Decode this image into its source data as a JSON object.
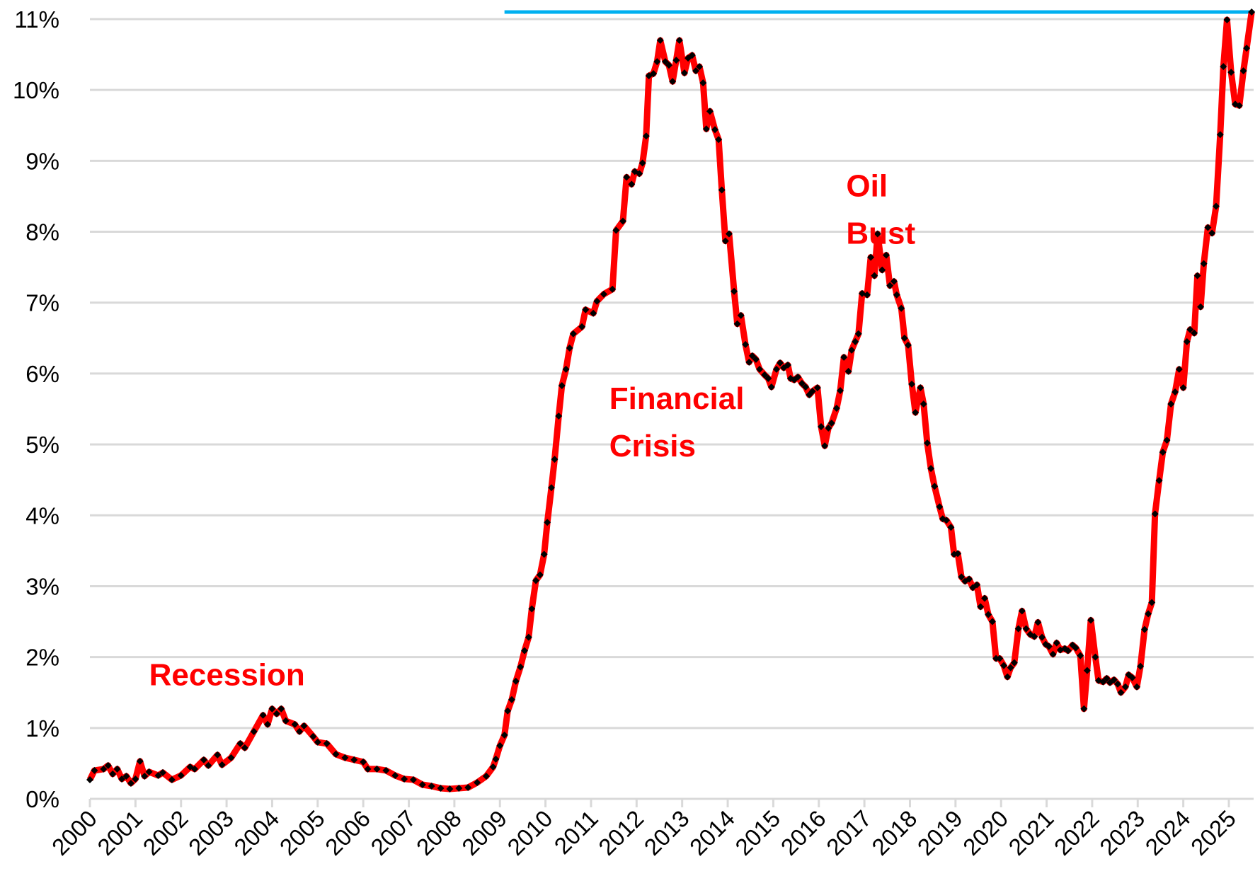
{
  "chart_data": {
    "type": "line",
    "title": "",
    "xlabel": "",
    "ylabel": "",
    "xlim": [
      2000,
      2025.55
    ],
    "ylim": [
      0,
      11
    ],
    "grid": "horizontal",
    "legend": "none",
    "x_ticks": [
      "2000",
      "2001",
      "2002",
      "2003",
      "2004",
      "2005",
      "2006",
      "2007",
      "2008",
      "2009",
      "2010",
      "2011",
      "2012",
      "2013",
      "2014",
      "2015",
      "2016",
      "2017",
      "2018",
      "2019",
      "2020",
      "2021",
      "2022",
      "2023",
      "2024",
      "2025"
    ],
    "y_ticks": [
      "0%",
      "1%",
      "2%",
      "3%",
      "4%",
      "5%",
      "6%",
      "7%",
      "8%",
      "9%",
      "10%",
      "11%"
    ],
    "colors": {
      "line": "#ff0000",
      "marker": "#000000",
      "reference_line": "#00b0f0",
      "grid": "#d9d9d9",
      "annotation": "#ff0000"
    },
    "annotations": [
      {
        "lines": [
          "Recession"
        ],
        "x": 2001.3,
        "y": 1.6
      },
      {
        "lines": [
          "Financial",
          "Crisis"
        ],
        "x": 2011.4,
        "y": 5.5
      },
      {
        "lines": [
          "Oil",
          "Bust"
        ],
        "x": 2016.6,
        "y": 8.5
      }
    ],
    "reference_line": {
      "value": 11.1,
      "x_start": 2009.1,
      "x_end": 2025.55
    },
    "series": [
      {
        "marker": "diamond",
        "points": [
          [
            2000.0,
            0.27
          ],
          [
            2000.1,
            0.4
          ],
          [
            2000.3,
            0.42
          ],
          [
            2000.4,
            0.47
          ],
          [
            2000.5,
            0.35
          ],
          [
            2000.6,
            0.42
          ],
          [
            2000.7,
            0.28
          ],
          [
            2000.8,
            0.32
          ],
          [
            2000.9,
            0.22
          ],
          [
            2001.0,
            0.28
          ],
          [
            2001.1,
            0.53
          ],
          [
            2001.2,
            0.32
          ],
          [
            2001.3,
            0.38
          ],
          [
            2001.5,
            0.33
          ],
          [
            2001.6,
            0.37
          ],
          [
            2001.8,
            0.27
          ],
          [
            2002.0,
            0.33
          ],
          [
            2002.2,
            0.45
          ],
          [
            2002.3,
            0.42
          ],
          [
            2002.5,
            0.55
          ],
          [
            2002.6,
            0.47
          ],
          [
            2002.8,
            0.62
          ],
          [
            2002.9,
            0.48
          ],
          [
            2003.1,
            0.58
          ],
          [
            2003.3,
            0.78
          ],
          [
            2003.4,
            0.72
          ],
          [
            2003.6,
            0.95
          ],
          [
            2003.8,
            1.18
          ],
          [
            2003.9,
            1.05
          ],
          [
            2004.0,
            1.27
          ],
          [
            2004.1,
            1.2
          ],
          [
            2004.2,
            1.27
          ],
          [
            2004.3,
            1.1
          ],
          [
            2004.5,
            1.05
          ],
          [
            2004.6,
            0.95
          ],
          [
            2004.7,
            1.03
          ],
          [
            2004.9,
            0.88
          ],
          [
            2005.0,
            0.8
          ],
          [
            2005.2,
            0.78
          ],
          [
            2005.4,
            0.63
          ],
          [
            2005.6,
            0.58
          ],
          [
            2005.8,
            0.55
          ],
          [
            2006.0,
            0.52
          ],
          [
            2006.1,
            0.42
          ],
          [
            2006.3,
            0.42
          ],
          [
            2006.5,
            0.4
          ],
          [
            2006.7,
            0.33
          ],
          [
            2006.9,
            0.28
          ],
          [
            2007.1,
            0.27
          ],
          [
            2007.3,
            0.2
          ],
          [
            2007.5,
            0.18
          ],
          [
            2007.7,
            0.15
          ],
          [
            2007.9,
            0.14
          ],
          [
            2008.1,
            0.15
          ],
          [
            2008.3,
            0.16
          ],
          [
            2008.5,
            0.23
          ],
          [
            2008.7,
            0.32
          ],
          [
            2008.85,
            0.45
          ],
          [
            2008.91,
            0.56
          ],
          [
            2009.0,
            0.75
          ],
          [
            2009.1,
            0.9
          ],
          [
            2009.17,
            1.24
          ],
          [
            2009.26,
            1.4
          ],
          [
            2009.35,
            1.66
          ],
          [
            2009.45,
            1.86
          ],
          [
            2009.54,
            2.09
          ],
          [
            2009.63,
            2.28
          ],
          [
            2009.7,
            2.68
          ],
          [
            2009.79,
            3.08
          ],
          [
            2009.88,
            3.16
          ],
          [
            2009.97,
            3.45
          ],
          [
            2010.04,
            3.9
          ],
          [
            2010.13,
            4.39
          ],
          [
            2010.2,
            4.79
          ],
          [
            2010.29,
            5.4
          ],
          [
            2010.36,
            5.83
          ],
          [
            2010.45,
            6.06
          ],
          [
            2010.53,
            6.36
          ],
          [
            2010.61,
            6.56
          ],
          [
            2010.8,
            6.66
          ],
          [
            2010.88,
            6.9
          ],
          [
            2011.05,
            6.85
          ],
          [
            2011.13,
            7.02
          ],
          [
            2011.28,
            7.12
          ],
          [
            2011.47,
            7.19
          ],
          [
            2011.55,
            8.02
          ],
          [
            2011.7,
            8.15
          ],
          [
            2011.78,
            8.77
          ],
          [
            2011.89,
            8.67
          ],
          [
            2011.96,
            8.85
          ],
          [
            2012.06,
            8.82
          ],
          [
            2012.13,
            8.97
          ],
          [
            2012.21,
            9.35
          ],
          [
            2012.27,
            10.2
          ],
          [
            2012.37,
            10.23
          ],
          [
            2012.45,
            10.4
          ],
          [
            2012.52,
            10.7
          ],
          [
            2012.63,
            10.4
          ],
          [
            2012.71,
            10.35
          ],
          [
            2012.79,
            10.12
          ],
          [
            2012.87,
            10.42
          ],
          [
            2012.94,
            10.7
          ],
          [
            2013.05,
            10.24
          ],
          [
            2013.13,
            10.45
          ],
          [
            2013.22,
            10.49
          ],
          [
            2013.3,
            10.27
          ],
          [
            2013.38,
            10.33
          ],
          [
            2013.46,
            10.1
          ],
          [
            2013.53,
            9.45
          ],
          [
            2013.61,
            9.7
          ],
          [
            2013.72,
            9.44
          ],
          [
            2013.8,
            9.3
          ],
          [
            2013.87,
            8.59
          ],
          [
            2013.95,
            7.87
          ],
          [
            2014.03,
            7.97
          ],
          [
            2014.14,
            7.16
          ],
          [
            2014.21,
            6.7
          ],
          [
            2014.29,
            6.82
          ],
          [
            2014.39,
            6.41
          ],
          [
            2014.47,
            6.16
          ],
          [
            2014.54,
            6.25
          ],
          [
            2014.62,
            6.2
          ],
          [
            2014.7,
            6.06
          ],
          [
            2014.81,
            5.98
          ],
          [
            2014.89,
            5.93
          ],
          [
            2014.96,
            5.81
          ],
          [
            2015.07,
            6.06
          ],
          [
            2015.15,
            6.15
          ],
          [
            2015.23,
            6.08
          ],
          [
            2015.32,
            6.12
          ],
          [
            2015.38,
            5.93
          ],
          [
            2015.46,
            5.91
          ],
          [
            2015.54,
            5.95
          ],
          [
            2015.63,
            5.86
          ],
          [
            2015.71,
            5.81
          ],
          [
            2015.79,
            5.7
          ],
          [
            2015.86,
            5.75
          ],
          [
            2015.97,
            5.8
          ],
          [
            2016.05,
            5.25
          ],
          [
            2016.13,
            4.98
          ],
          [
            2016.21,
            5.23
          ],
          [
            2016.28,
            5.3
          ],
          [
            2016.39,
            5.51
          ],
          [
            2016.47,
            5.76
          ],
          [
            2016.55,
            6.23
          ],
          [
            2016.65,
            6.03
          ],
          [
            2016.72,
            6.33
          ],
          [
            2016.8,
            6.45
          ],
          [
            2016.87,
            6.56
          ],
          [
            2016.95,
            7.13
          ],
          [
            2017.06,
            7.11
          ],
          [
            2017.14,
            7.64
          ],
          [
            2017.22,
            7.38
          ],
          [
            2017.29,
            7.97
          ],
          [
            2017.39,
            7.46
          ],
          [
            2017.48,
            7.67
          ],
          [
            2017.56,
            7.24
          ],
          [
            2017.65,
            7.3
          ],
          [
            2017.71,
            7.11
          ],
          [
            2017.81,
            6.92
          ],
          [
            2017.88,
            6.5
          ],
          [
            2017.96,
            6.4
          ],
          [
            2018.04,
            5.85
          ],
          [
            2018.12,
            5.45
          ],
          [
            2018.23,
            5.8
          ],
          [
            2018.3,
            5.57
          ],
          [
            2018.38,
            5.02
          ],
          [
            2018.46,
            4.66
          ],
          [
            2018.54,
            4.41
          ],
          [
            2018.65,
            4.12
          ],
          [
            2018.72,
            3.95
          ],
          [
            2018.8,
            3.93
          ],
          [
            2018.9,
            3.83
          ],
          [
            2018.97,
            3.45
          ],
          [
            2019.05,
            3.46
          ],
          [
            2019.13,
            3.13
          ],
          [
            2019.21,
            3.07
          ],
          [
            2019.3,
            3.1
          ],
          [
            2019.38,
            2.98
          ],
          [
            2019.47,
            3.02
          ],
          [
            2019.55,
            2.71
          ],
          [
            2019.64,
            2.83
          ],
          [
            2019.72,
            2.6
          ],
          [
            2019.81,
            2.5
          ],
          [
            2019.89,
            1.98
          ],
          [
            2019.97,
            1.98
          ],
          [
            2020.06,
            1.88
          ],
          [
            2020.14,
            1.72
          ],
          [
            2020.21,
            1.85
          ],
          [
            2020.29,
            1.92
          ],
          [
            2020.38,
            2.4
          ],
          [
            2020.46,
            2.65
          ],
          [
            2020.55,
            2.4
          ],
          [
            2020.64,
            2.32
          ],
          [
            2020.73,
            2.29
          ],
          [
            2020.81,
            2.49
          ],
          [
            2020.9,
            2.28
          ],
          [
            2020.98,
            2.18
          ],
          [
            2021.05,
            2.15
          ],
          [
            2021.14,
            2.04
          ],
          [
            2021.22,
            2.2
          ],
          [
            2021.3,
            2.1
          ],
          [
            2021.4,
            2.12
          ],
          [
            2021.47,
            2.09
          ],
          [
            2021.57,
            2.17
          ],
          [
            2021.64,
            2.13
          ],
          [
            2021.74,
            2.02
          ],
          [
            2021.82,
            1.27
          ],
          [
            2021.89,
            1.81
          ],
          [
            2021.97,
            2.52
          ],
          [
            2022.07,
            2.0
          ],
          [
            2022.14,
            1.67
          ],
          [
            2022.24,
            1.65
          ],
          [
            2022.32,
            1.7
          ],
          [
            2022.39,
            1.64
          ],
          [
            2022.48,
            1.68
          ],
          [
            2022.56,
            1.62
          ],
          [
            2022.63,
            1.5
          ],
          [
            2022.73,
            1.58
          ],
          [
            2022.8,
            1.75
          ],
          [
            2022.88,
            1.71
          ],
          [
            2022.98,
            1.58
          ],
          [
            2023.06,
            1.87
          ],
          [
            2023.15,
            2.39
          ],
          [
            2023.23,
            2.61
          ],
          [
            2023.31,
            2.77
          ],
          [
            2023.38,
            4.02
          ],
          [
            2023.47,
            4.49
          ],
          [
            2023.55,
            4.89
          ],
          [
            2023.64,
            5.06
          ],
          [
            2023.73,
            5.57
          ],
          [
            2023.82,
            5.74
          ],
          [
            2023.91,
            6.06
          ],
          [
            2024.0,
            5.8
          ],
          [
            2024.08,
            6.45
          ],
          [
            2024.15,
            6.62
          ],
          [
            2024.24,
            6.57
          ],
          [
            2024.31,
            7.38
          ],
          [
            2024.38,
            6.94
          ],
          [
            2024.45,
            7.55
          ],
          [
            2024.54,
            8.06
          ],
          [
            2024.63,
            7.98
          ],
          [
            2024.72,
            8.36
          ],
          [
            2024.81,
            9.37
          ],
          [
            2024.88,
            10.33
          ],
          [
            2024.96,
            10.99
          ],
          [
            2025.05,
            10.25
          ],
          [
            2025.14,
            9.8
          ],
          [
            2025.23,
            9.78
          ],
          [
            2025.32,
            10.27
          ],
          [
            2025.39,
            10.59
          ],
          [
            2025.5,
            11.1
          ]
        ]
      }
    ]
  }
}
